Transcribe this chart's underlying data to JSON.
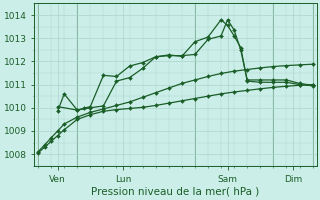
{
  "bg_color": "#cceee8",
  "grid_color": "#aad4cc",
  "line_color": "#1a5e28",
  "marker_color": "#1a5e28",
  "xlabel": "Pression niveau de la mer( hPa )",
  "xlabel_fontsize": 7.5,
  "tick_fontsize": 6.5,
  "ylim": [
    1007.5,
    1014.5
  ],
  "yticks": [
    1008,
    1009,
    1010,
    1011,
    1012,
    1013,
    1014
  ],
  "xlim": [
    -0.3,
    21.3
  ],
  "xtick_positions": [
    1.5,
    6.5,
    14.5,
    19.5
  ],
  "xtick_labels": [
    "Ven",
    "Lun",
    "Sam",
    "Dim"
  ],
  "vline_positions": [
    0,
    3,
    12,
    18,
    21
  ],
  "series1": {
    "x": [
      0.0,
      0.5,
      1.0,
      1.5,
      2.0,
      3.0,
      4.0,
      5.0,
      6.0,
      7.0,
      8.0,
      9.0,
      10.0,
      11.0,
      12.0,
      13.0,
      14.0,
      15.0,
      16.0,
      17.0,
      18.0,
      19.0,
      20.0,
      21.0
    ],
    "y": [
      1008.05,
      1008.3,
      1008.55,
      1008.8,
      1009.05,
      1009.5,
      1009.7,
      1009.85,
      1009.92,
      1009.97,
      1010.02,
      1010.1,
      1010.2,
      1010.3,
      1010.4,
      1010.5,
      1010.6,
      1010.68,
      1010.75,
      1010.82,
      1010.88,
      1010.93,
      1010.97,
      1011.0
    ]
  },
  "series2": {
    "x": [
      0.0,
      0.5,
      1.0,
      1.5,
      2.0,
      3.0,
      4.0,
      5.0,
      6.0,
      7.0,
      8.0,
      9.0,
      10.0,
      11.0,
      12.0,
      13.0,
      14.0,
      15.0,
      16.0,
      17.0,
      18.0,
      19.0,
      20.0,
      21.0
    ],
    "y": [
      1008.1,
      1008.4,
      1008.7,
      1009.0,
      1009.3,
      1009.6,
      1009.8,
      1009.95,
      1010.1,
      1010.25,
      1010.45,
      1010.65,
      1010.85,
      1011.05,
      1011.2,
      1011.35,
      1011.48,
      1011.58,
      1011.65,
      1011.72,
      1011.78,
      1011.82,
      1011.85,
      1011.88
    ]
  },
  "series3": {
    "x": [
      1.5,
      2.0,
      3.0,
      3.5,
      4.0,
      5.0,
      6.0,
      7.0,
      8.0,
      9.0,
      10.0,
      11.0,
      12.0,
      13.0,
      14.0,
      14.5,
      15.0,
      15.5,
      16.0,
      17.0,
      18.0,
      19.0,
      20.0,
      21.0
    ],
    "y": [
      1009.85,
      1010.6,
      1009.9,
      1009.98,
      1010.05,
      1011.4,
      1011.35,
      1011.8,
      1011.95,
      1012.2,
      1012.28,
      1012.22,
      1012.85,
      1013.05,
      1013.8,
      1013.55,
      1013.1,
      1012.6,
      1011.15,
      1011.1,
      1011.1,
      1011.1,
      1011.0,
      1010.95
    ]
  },
  "series4": {
    "x": [
      1.5,
      3.0,
      4.0,
      5.0,
      6.0,
      7.0,
      8.0,
      9.0,
      10.0,
      11.0,
      12.0,
      13.0,
      14.0,
      14.5,
      15.0,
      15.5,
      16.0,
      17.0,
      18.0,
      19.0,
      20.0,
      21.0
    ],
    "y": [
      1010.05,
      1009.9,
      1010.0,
      1010.08,
      1011.15,
      1011.3,
      1011.7,
      1012.2,
      1012.25,
      1012.25,
      1012.3,
      1012.95,
      1013.1,
      1013.8,
      1013.35,
      1012.5,
      1011.2,
      1011.2,
      1011.2,
      1011.2,
      1011.05,
      1010.97
    ]
  }
}
